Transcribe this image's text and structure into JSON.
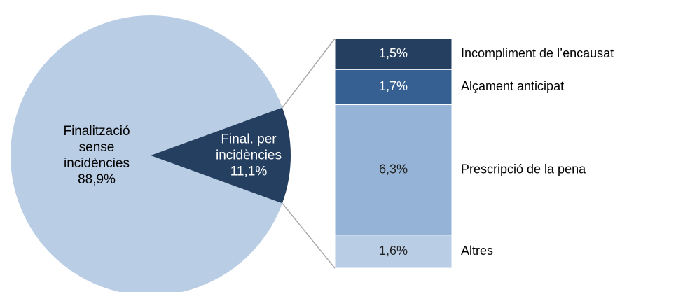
{
  "chart_data": {
    "type": "pie-of-bar",
    "pie": {
      "categories": [
        "Finalització sense incidències",
        "Final. per incidències"
      ],
      "values": [
        88.9,
        11.1
      ],
      "value_labels": [
        "88,9%",
        "11,1%"
      ],
      "colors": [
        "#b9cde5",
        "#243f60"
      ]
    },
    "bar": {
      "categories": [
        "Incompliment de l’encausat",
        "Alçament anticipat",
        "Prescripció de la pena",
        "Altres"
      ],
      "values": [
        1.5,
        1.7,
        6.3,
        1.6
      ],
      "value_labels": [
        "1,5%",
        "1,7%",
        "6,3%",
        "1,6%"
      ],
      "colors": [
        "#243f60",
        "#366092",
        "#95b3d7",
        "#b9cde5"
      ]
    }
  }
}
